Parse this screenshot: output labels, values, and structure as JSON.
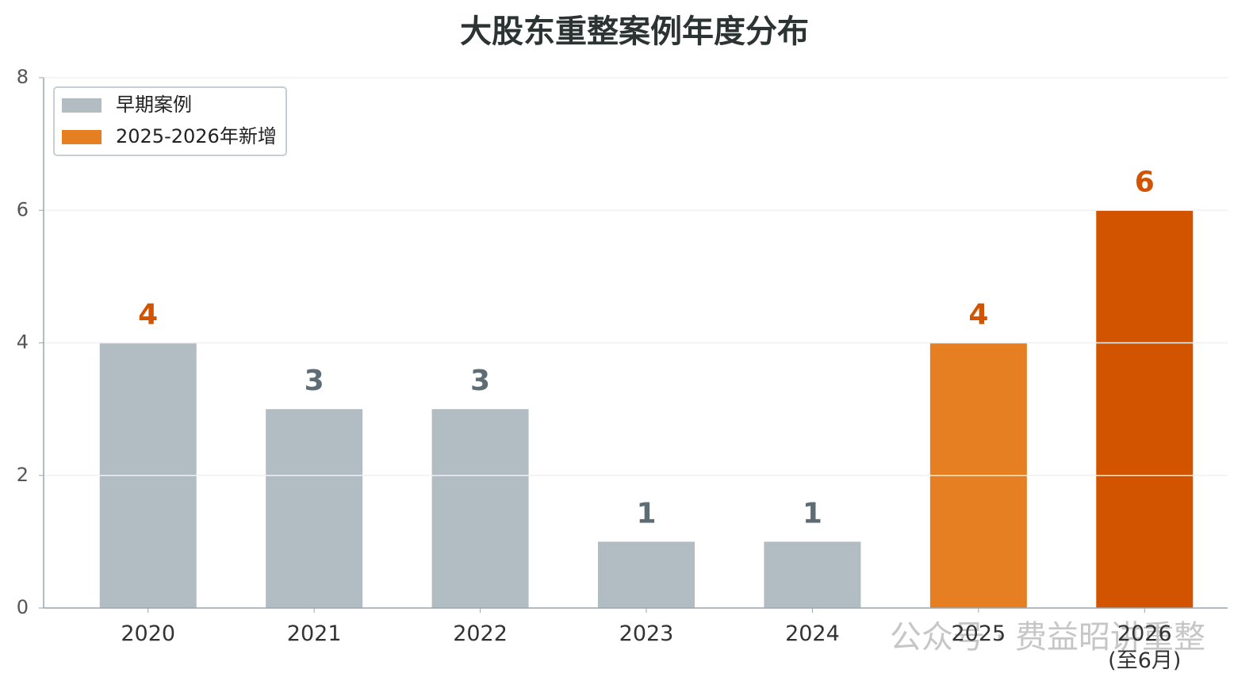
{
  "chart_data": {
    "type": "bar",
    "title": "大股东重整案例年度分布",
    "categories": [
      "2020",
      "2021",
      "2022",
      "2023",
      "2024",
      "2025",
      "2026\n(至6月)"
    ],
    "values": [
      4,
      3,
      3,
      1,
      1,
      4,
      6
    ],
    "colors": [
      "#b2bcc3",
      "#b2bcc3",
      "#b2bcc3",
      "#b2bcc3",
      "#b2bcc3",
      "#e67e22",
      "#d35400"
    ],
    "value_label_colors": [
      "#d35400",
      "#5d6d73",
      "#5d6d73",
      "#5d6d73",
      "#5d6d73",
      "#d35400",
      "#d35400"
    ],
    "legend": [
      {
        "name": "早期案例",
        "color": "#b2bcc3"
      },
      {
        "name": "2025-2026年新增",
        "color": "#e67e22"
      }
    ],
    "legend_position": "upper left",
    "ylim": [
      0,
      8
    ],
    "yticks": [
      0,
      2,
      4,
      6,
      8
    ],
    "grid": true,
    "watermark": "公众号 · 费益昭讲重整"
  }
}
